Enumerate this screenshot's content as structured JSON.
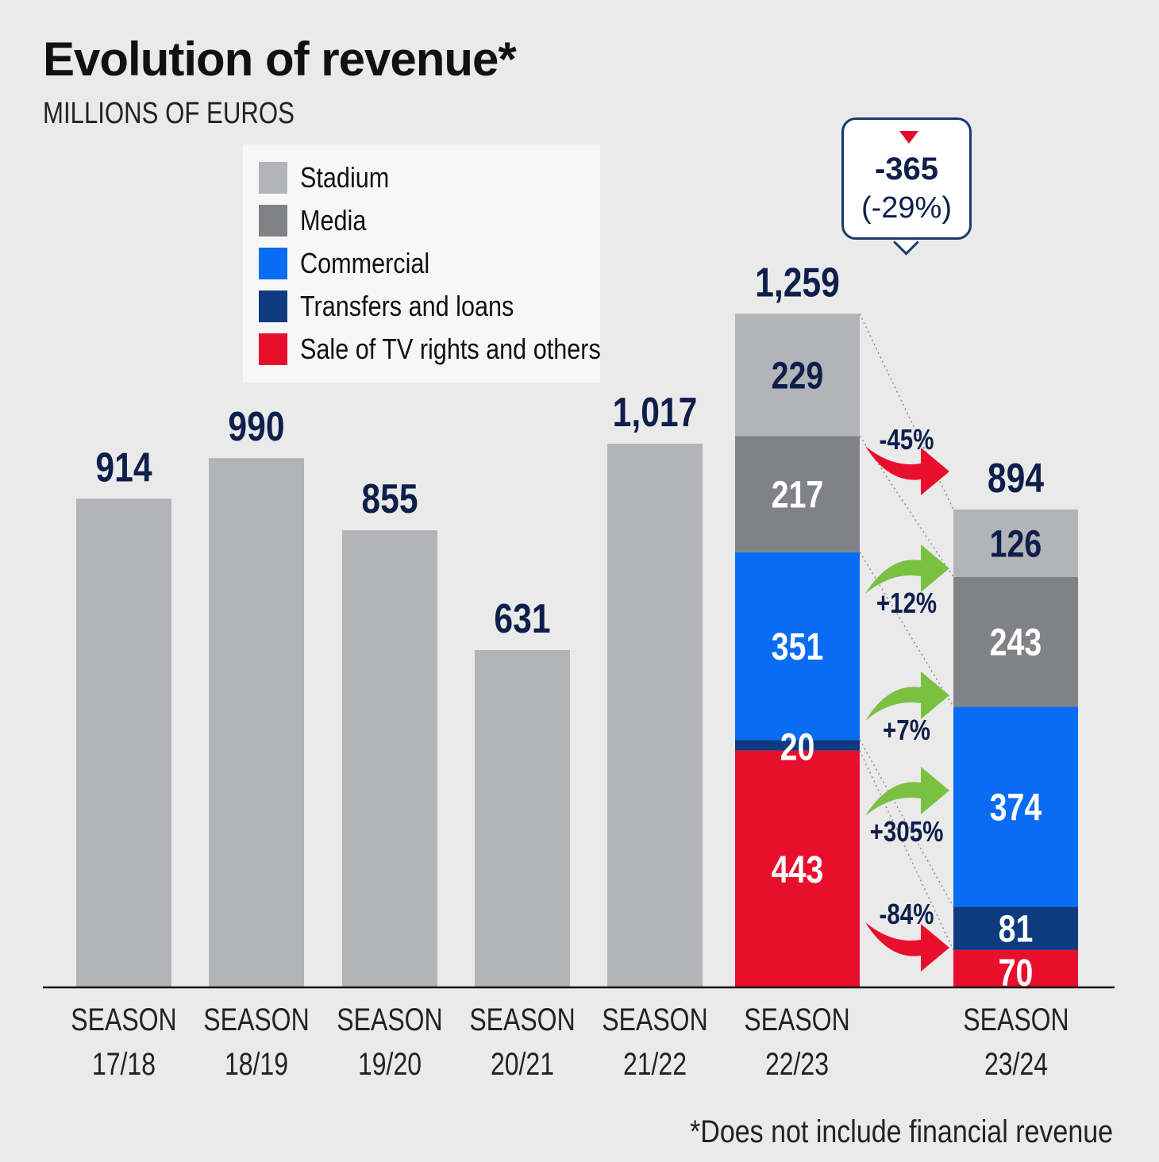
{
  "title": "Evolution of revenue*",
  "subtitle": "MILLIONS OF EUROS",
  "footnote": "*Does not include financial revenue",
  "legend": [
    {
      "label": "Stadium",
      "color": "#b2b4b7"
    },
    {
      "label": "Media",
      "color": "#808285"
    },
    {
      "label": "Commercial",
      "color": "#0a6cf3"
    },
    {
      "label": "Transfers and loans",
      "color": "#0d3a80"
    },
    {
      "label": "Sale of TV rights and others",
      "color": "#e80f2d"
    }
  ],
  "callout": {
    "value": "-365",
    "pct": "(-29%)",
    "icon": "down-triangle-icon"
  },
  "chart_data": {
    "type": "bar",
    "categories": [
      "SEASON 17/18",
      "SEASON 18/19",
      "SEASON 19/20",
      "SEASON 20/21",
      "SEASON 21/22",
      "SEASON 22/23",
      "SEASON 23/24"
    ],
    "category_lines": [
      [
        "SEASON",
        "17/18"
      ],
      [
        "SEASON",
        "18/19"
      ],
      [
        "SEASON",
        "19/20"
      ],
      [
        "SEASON",
        "20/21"
      ],
      [
        "SEASON",
        "21/22"
      ],
      [
        "SEASON",
        "22/23"
      ],
      [
        "SEASON",
        "23/24"
      ]
    ],
    "totals": [
      914,
      990,
      855,
      631,
      1017,
      1259,
      894
    ],
    "total_labels": [
      "914",
      "990",
      "855",
      "631",
      "1,017",
      "1,259",
      "894"
    ],
    "ylim": [
      0,
      1259
    ],
    "stacked": {
      "SEASON 22/23": [
        {
          "name": "Stadium",
          "value": 229
        },
        {
          "name": "Media",
          "value": 217
        },
        {
          "name": "Commercial",
          "value": 351
        },
        {
          "name": "Transfers and loans",
          "value": 20
        },
        {
          "name": "Sale of TV rights and others",
          "value": 443
        }
      ],
      "SEASON 23/24": [
        {
          "name": "Stadium",
          "value": 126
        },
        {
          "name": "Media",
          "value": 243
        },
        {
          "name": "Commercial",
          "value": 374
        },
        {
          "name": "Transfers and loans",
          "value": 81
        },
        {
          "name": "Sale of TV rights and others",
          "value": 70
        }
      ]
    },
    "changes": [
      {
        "label": "-45%",
        "direction": "down"
      },
      {
        "label": "+12%",
        "direction": "up"
      },
      {
        "label": "+7%",
        "direction": "up"
      },
      {
        "label": "+305%",
        "direction": "up"
      },
      {
        "label": "-84%",
        "direction": "down"
      }
    ],
    "colors": {
      "single": "#b2b4b7",
      "label": "#0d1f4a",
      "up_arrow": "#7ac142",
      "down_arrow": "#e80f2d"
    }
  }
}
